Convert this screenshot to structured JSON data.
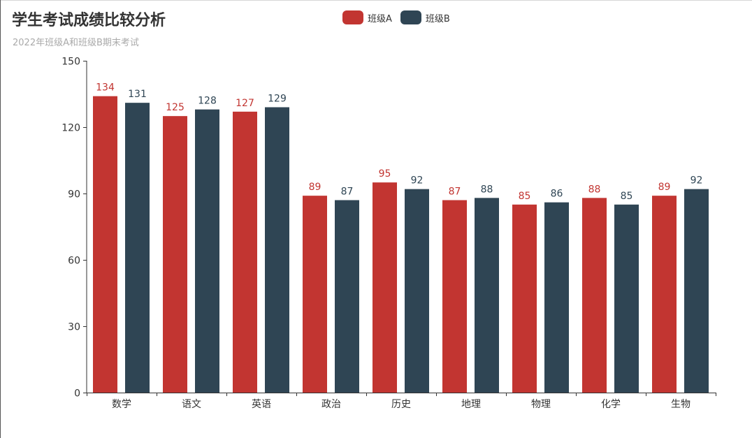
{
  "chart_data": {
    "type": "bar",
    "title": "学生考试成绩比较分析",
    "subtitle": "2022年班级A和班级B期末考试",
    "categories": [
      "数学",
      "语文",
      "英语",
      "政治",
      "历史",
      "地理",
      "物理",
      "化学",
      "生物"
    ],
    "series": [
      {
        "name": "班级A",
        "color": "#c23531",
        "values": [
          134,
          125,
          127,
          89,
          95,
          87,
          85,
          88,
          89
        ]
      },
      {
        "name": "班级B",
        "color": "#2f4554",
        "values": [
          131,
          128,
          129,
          87,
          92,
          88,
          86,
          85,
          92
        ]
      }
    ],
    "ylim": [
      0,
      150
    ],
    "yticks": [
      0,
      30,
      60,
      90,
      120,
      150
    ],
    "legend_position": "top-center",
    "grid": false,
    "data_labels": true
  }
}
